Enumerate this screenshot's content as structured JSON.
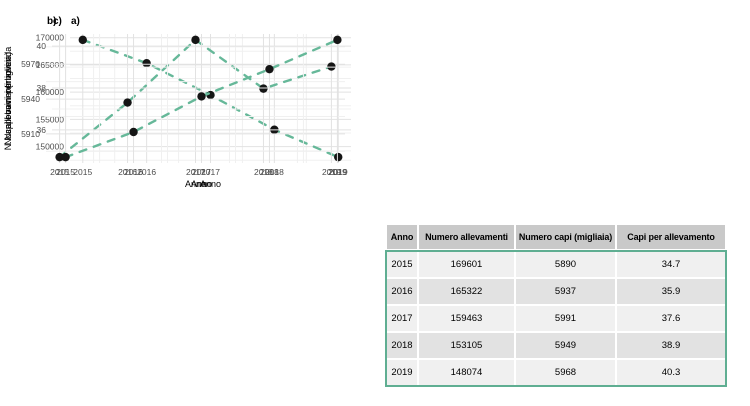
{
  "figure_title": "",
  "colors": {
    "accent_line": "#66b899",
    "point": "#151515",
    "grid_major": "#e2e2e2",
    "grid_minor": "#f0f0f0",
    "tick_text": "#4d4d4d",
    "table_border": "#5fae92",
    "table_header_bg": "#c9c9c9",
    "table_row_light": "#f0f0f0",
    "table_row_dark": "#e2e2e2"
  },
  "chart_data": [
    {
      "type": "line",
      "tag": "a)",
      "xlabel": "Anno",
      "ylabel": "N. allevamenti bovini",
      "x": [
        2015,
        2016,
        2017,
        2018,
        2019
      ],
      "values": [
        169601,
        165322,
        159463,
        153105,
        148074
      ],
      "xticks": [
        2015,
        2016,
        2017,
        2018,
        2019
      ],
      "yticks": [
        150000,
        155000,
        160000,
        165000,
        170000
      ],
      "line_style": "dashed",
      "grid": "major+minor",
      "legend": "none"
    },
    {
      "type": "line",
      "tag": "b)",
      "xlabel": "Anno",
      "ylabel": "N. capi bovini (migliaia)",
      "x": [
        2015,
        2016,
        2017,
        2018,
        2019
      ],
      "values": [
        5890,
        5937,
        5991,
        5949,
        5968
      ],
      "xticks": [
        2015,
        2016,
        2017,
        2018,
        2019
      ],
      "yticks": [
        5910,
        5940,
        5970
      ],
      "line_style": "dashed",
      "grid": "major+minor",
      "legend": "none"
    },
    {
      "type": "line",
      "tag": "c)",
      "xlabel": "Anno",
      "ylabel": "N. capi bovini per azienda",
      "x": [
        2015,
        2016,
        2017,
        2018,
        2019
      ],
      "values": [
        34.7,
        35.9,
        37.6,
        38.9,
        40.3
      ],
      "xticks": [
        2015,
        2016,
        2017,
        2018,
        2019
      ],
      "yticks": [
        36,
        38,
        40
      ],
      "line_style": "dashed",
      "grid": "major+minor",
      "legend": "none"
    }
  ],
  "table": {
    "headers": [
      "Anno",
      "Numero allevamenti",
      "Numero capi (migliaia)",
      "Capi per allevamento"
    ],
    "rows": [
      [
        "2015",
        "169601",
        "5890",
        "34.7"
      ],
      [
        "2016",
        "165322",
        "5937",
        "35.9"
      ],
      [
        "2017",
        "159463",
        "5991",
        "37.6"
      ],
      [
        "2018",
        "153105",
        "5949",
        "38.9"
      ],
      [
        "2019",
        "148074",
        "5968",
        "40.3"
      ]
    ]
  }
}
